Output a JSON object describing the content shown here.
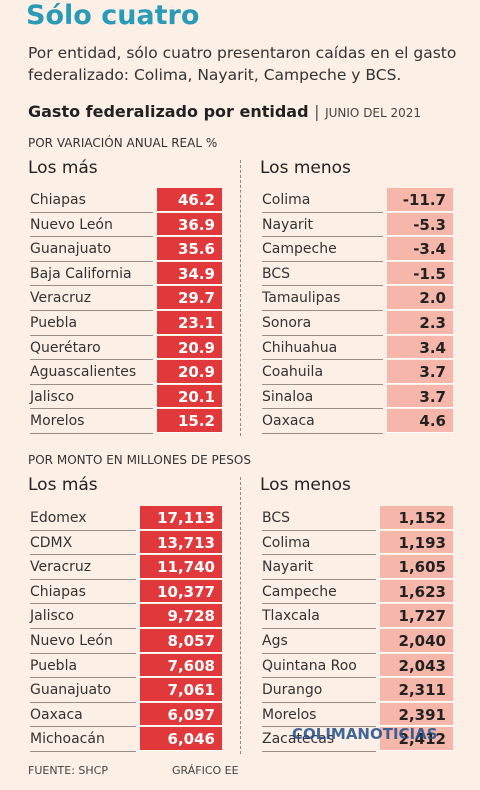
{
  "title": "Sólo cuatro",
  "subtitle": "Por entidad, sólo cuatro presentaron caídas en el gasto federalizado: Colima, Nayarit, Campeche y BCS.",
  "heading": "Gasto federalizado por entidad",
  "heading_date": "JUNIO DEL 2021",
  "sections": [
    {
      "label": "POR VARIACIÓN ANUAL REAL %",
      "left": {
        "header": "Los más",
        "rows": [
          [
            "Chiapas",
            "46.2"
          ],
          [
            "Nuevo León",
            "36.9"
          ],
          [
            "Guanajuato",
            "35.6"
          ],
          [
            "Baja California",
            "34.9"
          ],
          [
            "Veracruz",
            "29.7"
          ],
          [
            "Puebla",
            "23.1"
          ],
          [
            "Querétaro",
            "20.9"
          ],
          [
            "Aguascalientes",
            "20.9"
          ],
          [
            "Jalisco",
            "20.1"
          ],
          [
            "Morelos",
            "15.2"
          ]
        ]
      },
      "right": {
        "header": "Los menos",
        "rows": [
          [
            "Colima",
            "-11.7"
          ],
          [
            "Nayarit",
            "-5.3"
          ],
          [
            "Campeche",
            "-3.4"
          ],
          [
            "BCS",
            "-1.5"
          ],
          [
            "Tamaulipas",
            "2.0"
          ],
          [
            "Sonora",
            "2.3"
          ],
          [
            "Chihuahua",
            "3.4"
          ],
          [
            "Coahuila",
            "3.7"
          ],
          [
            "Sinaloa",
            "3.7"
          ],
          [
            "Oaxaca",
            "4.6"
          ]
        ]
      }
    },
    {
      "label": "POR MONTO EN MILLONES DE PESOS",
      "left": {
        "header": "Los más",
        "rows": [
          [
            "Edomex",
            "17,113"
          ],
          [
            "CDMX",
            "13,713"
          ],
          [
            "Veracruz",
            "11,740"
          ],
          [
            "Chiapas",
            "10,377"
          ],
          [
            "Jalisco",
            "9,728"
          ],
          [
            "Nuevo León",
            "8,057"
          ],
          [
            "Puebla",
            "7,608"
          ],
          [
            "Guanajuato",
            "7,061"
          ],
          [
            "Oaxaca",
            "6,097"
          ],
          [
            "Michoacán",
            "6,046"
          ]
        ]
      },
      "right": {
        "header": "Los menos",
        "rows": [
          [
            "BCS",
            "1,152"
          ],
          [
            "Colima",
            "1,193"
          ],
          [
            "Nayarit",
            "1,605"
          ],
          [
            "Campeche",
            "1,623"
          ],
          [
            "Tlaxcala",
            "1,727"
          ],
          [
            "Ags",
            "2,040"
          ],
          [
            "Quintana Roo",
            "2,043"
          ],
          [
            "Durango",
            "2,311"
          ],
          [
            "Morelos",
            "2,391"
          ],
          [
            "Zacatecas",
            "2,412"
          ]
        ]
      }
    }
  ],
  "footer": {
    "source": "FUENTE: SHCP",
    "credit": "GRÁFICO EE"
  },
  "watermark": "COLIMANOTICIAS"
}
